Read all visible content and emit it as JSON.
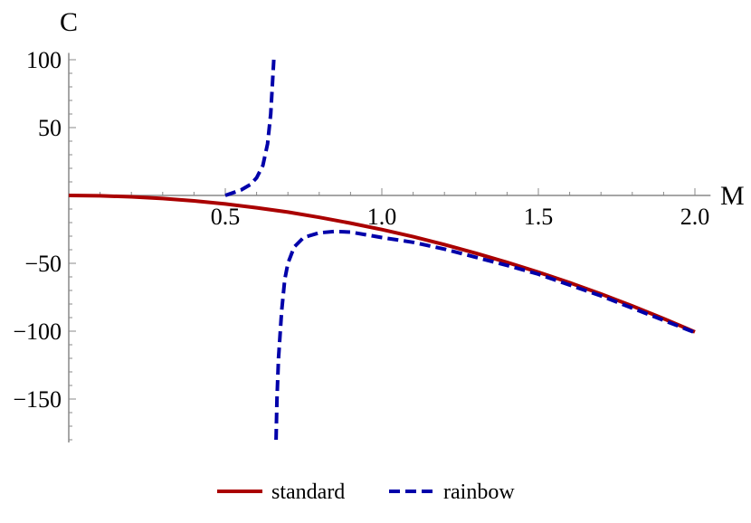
{
  "chart_data": {
    "type": "line",
    "xlabel": "M",
    "ylabel": "C",
    "xlim": [
      0,
      2.05
    ],
    "ylim": [
      -182,
      105
    ],
    "xticks": [
      0.5,
      1.0,
      1.5,
      2.0
    ],
    "xtick_labels": [
      "0.5",
      "1.0",
      "1.5",
      "2.0"
    ],
    "yticks": [
      100,
      50,
      -50,
      -100,
      -150
    ],
    "ytick_labels": [
      "100",
      "50",
      "−50",
      "−100",
      "−150"
    ],
    "grid": false,
    "legend_position": "bottom",
    "series": [
      {
        "name": "standard",
        "color": "#aa0000",
        "style": "solid",
        "segments": [
          {
            "x": [
              0,
              0.1,
              0.2,
              0.3,
              0.4,
              0.5,
              0.6,
              0.7,
              0.8,
              0.9,
              1.0,
              1.1,
              1.2,
              1.3,
              1.4,
              1.5,
              1.6,
              1.7,
              1.8,
              1.9,
              2.0
            ],
            "y": [
              0,
              -0.25,
              -1.0,
              -2.26,
              -4.02,
              -6.28,
              -9.05,
              -12.3,
              -16.1,
              -20.4,
              -25.1,
              -30.4,
              -36.2,
              -42.5,
              -49.3,
              -56.5,
              -64.3,
              -72.6,
              -81.4,
              -90.7,
              -100.5
            ]
          }
        ]
      },
      {
        "name": "rainbow",
        "color": "#0000aa",
        "style": "dashed",
        "segments": [
          {
            "x": [
              0.5,
              0.55,
              0.58,
              0.6,
              0.62,
              0.635,
              0.645,
              0.65,
              0.655
            ],
            "y": [
              0,
              4,
              8,
              13,
              22,
              38,
              60,
              80,
              100
            ]
          },
          {
            "x": [
              0.662,
              0.665,
              0.67,
              0.68,
              0.69,
              0.7,
              0.72,
              0.75,
              0.8,
              0.85,
              0.9,
              1.0,
              1.1,
              1.2,
              1.3,
              1.4,
              1.5,
              1.6,
              1.7,
              1.8,
              1.9,
              2.0
            ],
            "y": [
              -180,
              -150,
              -120,
              -85,
              -62,
              -50,
              -38,
              -31,
              -27.5,
              -26.5,
              -27,
              -31,
              -34.5,
              -39.5,
              -45.5,
              -51.5,
              -58,
              -66,
              -74,
              -83,
              -92,
              -101
            ]
          }
        ]
      }
    ]
  }
}
